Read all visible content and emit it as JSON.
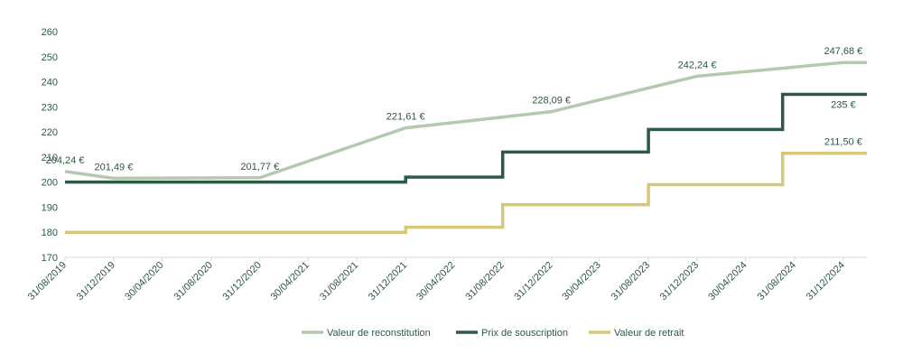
{
  "chart_data": {
    "type": "line",
    "title": "",
    "xlabel": "",
    "ylabel": "",
    "ylim": [
      170,
      260
    ],
    "yticks": [
      170,
      180,
      190,
      200,
      210,
      220,
      230,
      240,
      250,
      260
    ],
    "xlim": [
      "2019-08-31",
      "2025-02-28"
    ],
    "xticks": [
      "31/08/2019",
      "31/12/2019",
      "30/04/2020",
      "31/08/2020",
      "31/12/2020",
      "30/04/2021",
      "31/08/2021",
      "31/12/2021",
      "30/04/2022",
      "31/08/2022",
      "31/12/2022",
      "30/04/2023",
      "31/08/2023",
      "31/12/2023",
      "30/04/2024",
      "31/08/2024",
      "31/12/2024"
    ],
    "grid": false,
    "legend_position": "bottom",
    "series": [
      {
        "name": "Valeur de reconstitution",
        "color": "#b5c9af",
        "step": false,
        "points": [
          [
            "2019-08-31",
            204.24
          ],
          [
            "2019-12-31",
            201.49
          ],
          [
            "2020-12-31",
            201.77
          ],
          [
            "2021-12-31",
            221.61
          ],
          [
            "2022-12-31",
            228.09
          ],
          [
            "2023-12-31",
            242.24
          ],
          [
            "2024-12-31",
            247.68
          ],
          [
            "2025-02-28",
            247.68
          ]
        ],
        "labels": [
          {
            "x": "2019-08-31",
            "text": "204,24 €"
          },
          {
            "x": "2019-12-31",
            "text": "201,49 €"
          },
          {
            "x": "2020-12-31",
            "text": "201,77 €"
          },
          {
            "x": "2021-12-31",
            "text": "221,61 €"
          },
          {
            "x": "2022-12-31",
            "text": "228,09 €"
          },
          {
            "x": "2023-12-31",
            "text": "242,24 €"
          },
          {
            "x": "2024-12-31",
            "text": "247,68 €"
          }
        ]
      },
      {
        "name": "Prix de souscription",
        "color": "#2e5947",
        "step": true,
        "points": [
          [
            "2019-08-31",
            200
          ],
          [
            "2021-12-31",
            202
          ],
          [
            "2022-08-31",
            212
          ],
          [
            "2023-08-31",
            221
          ],
          [
            "2024-08-01",
            235
          ],
          [
            "2025-02-28",
            235
          ]
        ],
        "labels": [
          {
            "x": "2024-12-31",
            "text": "235 €"
          }
        ]
      },
      {
        "name": "Valeur de retrait",
        "color": "#d7c77a",
        "step": true,
        "points": [
          [
            "2019-08-31",
            180
          ],
          [
            "2021-12-31",
            182
          ],
          [
            "2022-08-31",
            191
          ],
          [
            "2023-08-31",
            199
          ],
          [
            "2024-08-01",
            211.5
          ],
          [
            "2025-02-28",
            211.5
          ]
        ],
        "labels": [
          {
            "x": "2024-12-31",
            "text": "211,50 €"
          }
        ]
      }
    ]
  }
}
